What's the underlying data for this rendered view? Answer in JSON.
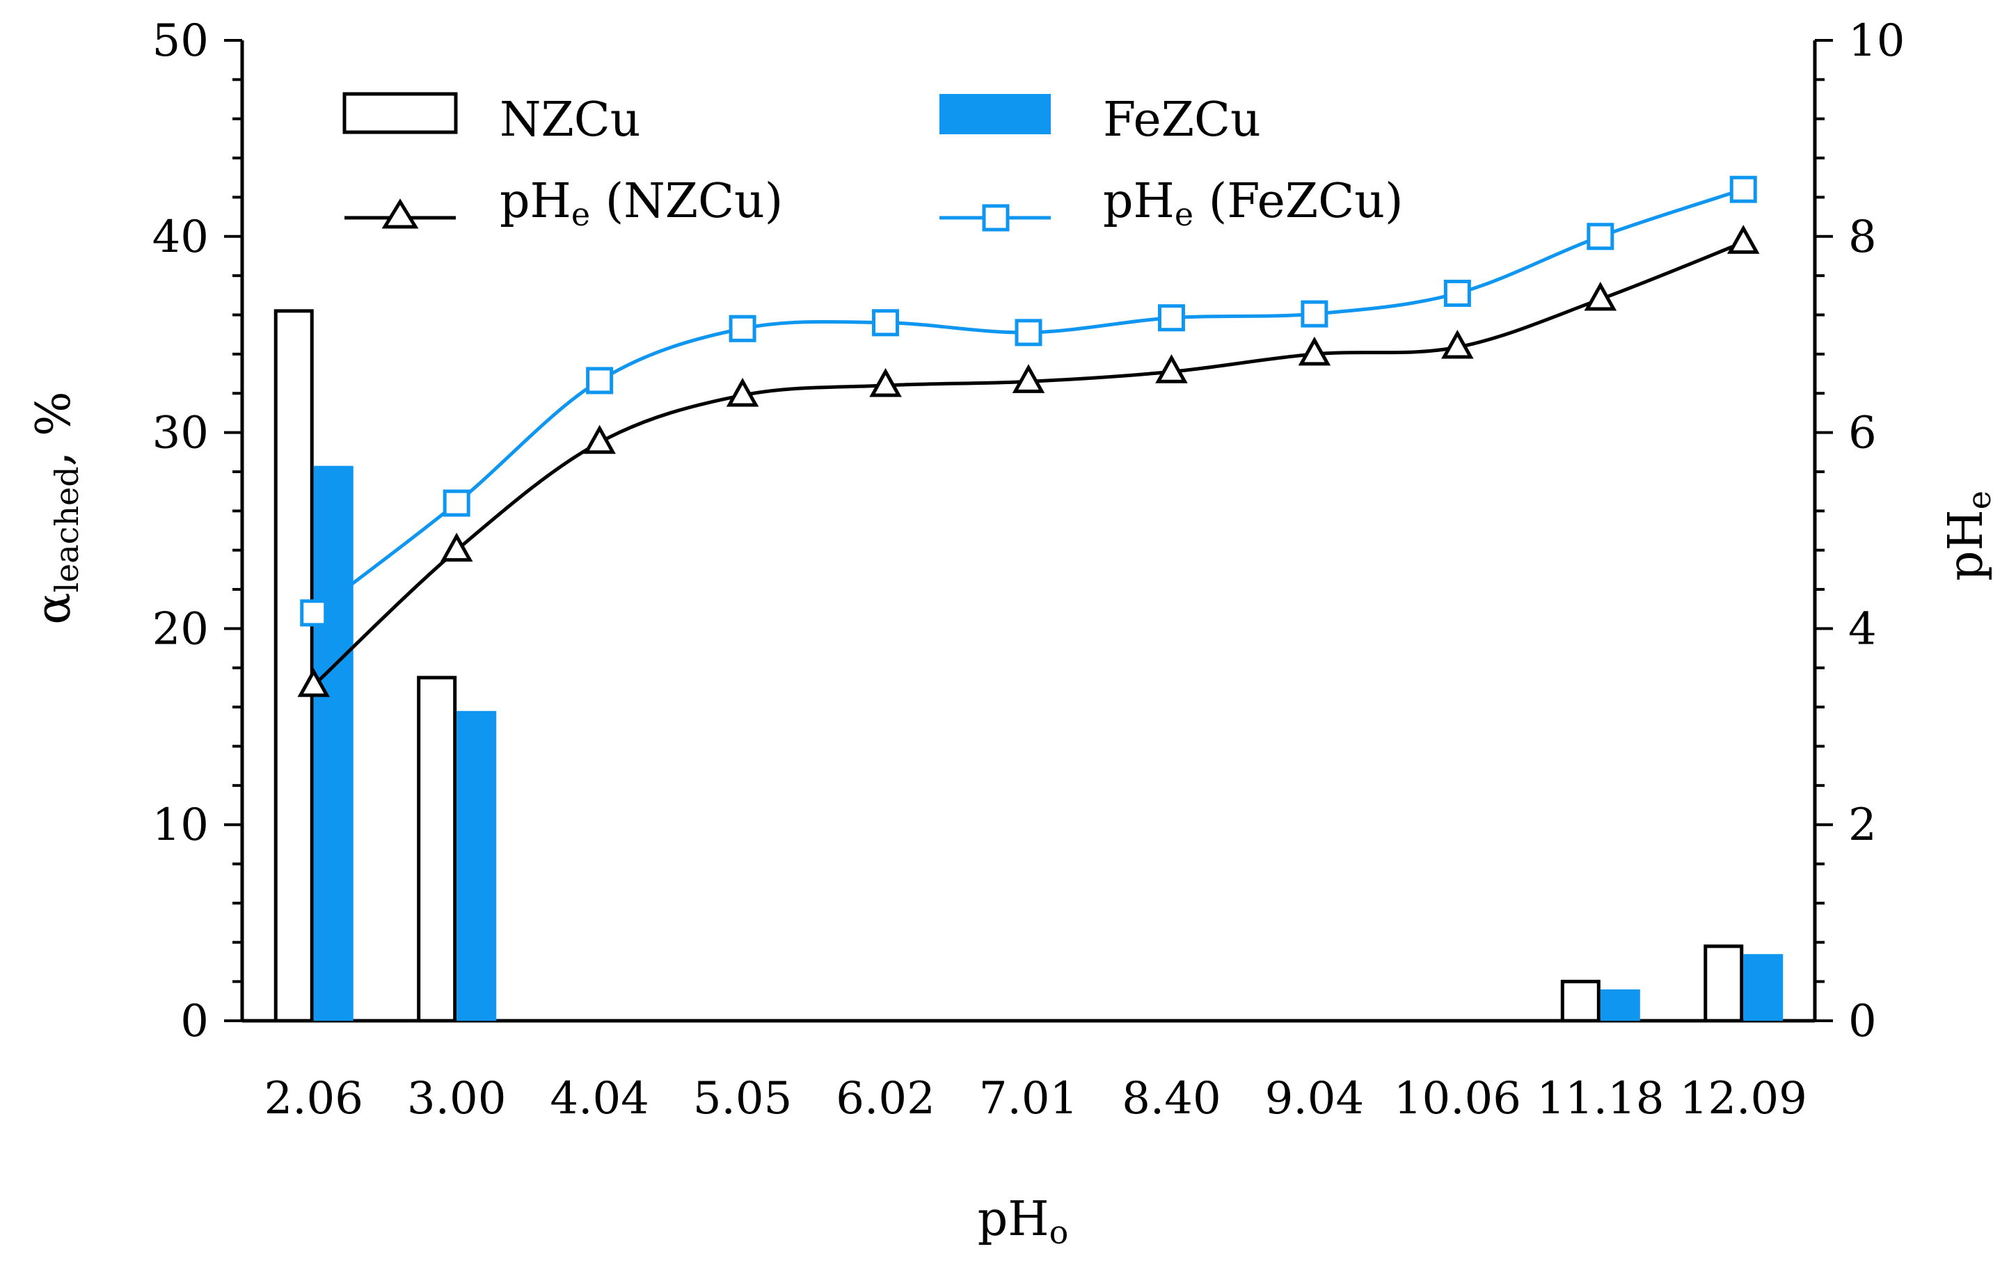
{
  "chart_data": {
    "type": "bar+line",
    "xlabel": "pH",
    "xlabel_sub": "o",
    "ylabel_left": "α",
    "ylabel_left_sub": "leached",
    "ylabel_left_unit": ", %",
    "ylabel_right": "pH",
    "ylabel_right_sub": "e",
    "categories": [
      "2.06",
      "3.00",
      "4.04",
      "5.05",
      "6.02",
      "7.01",
      "8.40",
      "9.04",
      "10.06",
      "11.18",
      "12.09"
    ],
    "ylim_left": [
      0,
      50
    ],
    "yticks_left": [
      "0",
      "10",
      "20",
      "30",
      "40",
      "50"
    ],
    "ylim_right": [
      0,
      10
    ],
    "yticks_right": [
      "0",
      "2",
      "4",
      "6",
      "8",
      "10"
    ],
    "bar_series": [
      {
        "name": "NZCu",
        "style": "outline",
        "color": "#000000",
        "values": [
          36.2,
          17.5,
          0,
          0,
          0,
          0,
          0,
          0,
          0,
          2.0,
          3.8
        ]
      },
      {
        "name": "FeZCu",
        "style": "filled",
        "color": "#0f96f0",
        "values": [
          28.3,
          15.8,
          0,
          0,
          0,
          0,
          0,
          0,
          0,
          1.6,
          3.4
        ]
      }
    ],
    "line_series": [
      {
        "name": "pH",
        "name_sub": "e",
        "name_suffix": " (NZCu)",
        "marker": "triangle",
        "color": "#000000",
        "values": [
          3.42,
          4.8,
          5.9,
          6.38,
          6.48,
          6.52,
          6.62,
          6.8,
          6.87,
          7.36,
          7.94
        ]
      },
      {
        "name": "pH",
        "name_sub": "e",
        "name_suffix": " (FeZCu)",
        "marker": "square",
        "color": "#0f96f0",
        "values": [
          4.16,
          5.28,
          6.53,
          7.06,
          7.12,
          7.02,
          7.17,
          7.21,
          7.42,
          8.0,
          8.48
        ]
      }
    ]
  }
}
